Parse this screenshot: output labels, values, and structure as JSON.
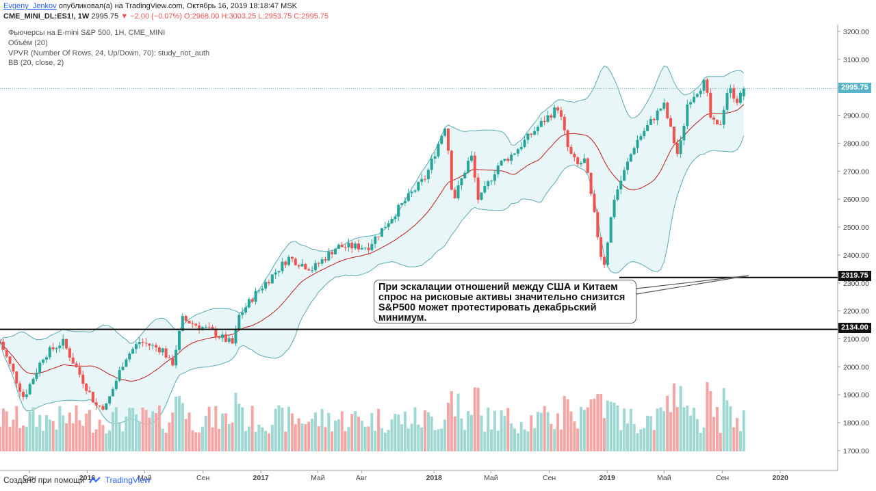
{
  "header": {
    "author": "Evgeny_Jenkov",
    "published_text": "опубликовал(а) на TradingView.com, Октябрь 16, 2019 18:18:47 MSK",
    "symbol": "CME_MINI_DL:ES1!, 1W",
    "last": "2995.75",
    "change": "▼ −2.00 (−0.07%)",
    "ohlc": "O:2968.00 H:3003.25 L:2953.75 C:2995.75"
  },
  "legend": {
    "title": "Фьючерсы на E-mini S&P 500, 1Н, CME_MINI",
    "volume": "Объём (20)",
    "vpvr": "VPVR (Number Of Rows, 24, Up/Down, 70): study_not_auth",
    "bb": "BB (20, close, 2)"
  },
  "price_tags": {
    "current": "2995.75",
    "level1": "2319.75",
    "level2": "2134.00"
  },
  "callout_text": "При эскалации отношений между США и Китаем спрос на рисковые активы значительно снизится S&P500 может протестировать декабрьский минимум.",
  "footer": {
    "made_with": "Создано при помощи",
    "brand": "TradingView"
  },
  "colors": {
    "up": "#26a69a",
    "down": "#ef5350",
    "vol_up": "#9fd8d3",
    "vol_down": "#f5a6a4",
    "bb_band": "#5aa9b4",
    "bb_fill": "#e9f6f7",
    "bb_basis": "#b71c1c",
    "last_line": "#5ab4c8"
  },
  "chart_data": {
    "type": "candlestick",
    "y_axis": {
      "ticks": [
        1700,
        1800,
        1900,
        2000,
        2100,
        2200,
        2300,
        2400,
        2500,
        2600,
        2700,
        2800,
        2900,
        3000,
        3100,
        3200
      ],
      "side": "right"
    },
    "x_axis": {
      "ticks": [
        "Сен",
        "2016",
        "Май",
        "Сен",
        "2017",
        "Май",
        "Авг",
        "2018",
        "Май",
        "Сен",
        "2019",
        "Май",
        "Сен",
        "2020"
      ]
    },
    "horizontal_levels": [
      2319.75,
      2134.0
    ],
    "last_price": 2995.75,
    "anchors": [
      [
        "2015-07-01",
        2090
      ],
      [
        "2015-08-20",
        1890
      ],
      [
        "2015-10-01",
        2040
      ],
      [
        "2015-11-10",
        2090
      ],
      [
        "2016-01-20",
        1860
      ],
      [
        "2016-02-10",
        1860
      ],
      [
        "2016-03-20",
        2030
      ],
      [
        "2016-04-20",
        2090
      ],
      [
        "2016-06-10",
        2060
      ],
      [
        "2016-06-27",
        2000
      ],
      [
        "2016-07-20",
        2170
      ],
      [
        "2016-09-15",
        2130
      ],
      [
        "2016-11-04",
        2080
      ],
      [
        "2016-11-15",
        2180
      ],
      [
        "2016-12-20",
        2260
      ],
      [
        "2017-02-28",
        2390
      ],
      [
        "2017-04-20",
        2350
      ],
      [
        "2017-06-10",
        2430
      ],
      [
        "2017-08-15",
        2430
      ],
      [
        "2017-10-15",
        2560
      ],
      [
        "2017-12-15",
        2680
      ],
      [
        "2018-01-26",
        2872
      ],
      [
        "2018-02-10",
        2590
      ],
      [
        "2018-03-20",
        2760
      ],
      [
        "2018-04-05",
        2590
      ],
      [
        "2018-05-15",
        2720
      ],
      [
        "2018-06-15",
        2760
      ],
      [
        "2018-08-20",
        2880
      ],
      [
        "2018-09-20",
        2930
      ],
      [
        "2018-10-12",
        2770
      ],
      [
        "2018-10-30",
        2720
      ],
      [
        "2018-11-15",
        2740
      ],
      [
        "2018-12-24",
        2350
      ],
      [
        "2019-01-15",
        2600
      ],
      [
        "2019-03-01",
        2800
      ],
      [
        "2019-04-30",
        2940
      ],
      [
        "2019-05-31",
        2750
      ],
      [
        "2019-06-20",
        2950
      ],
      [
        "2019-07-26",
        3020
      ],
      [
        "2019-08-08",
        2880
      ],
      [
        "2019-08-25",
        2850
      ],
      [
        "2019-09-13",
        3000
      ],
      [
        "2019-10-04",
        2950
      ],
      [
        "2019-10-16",
        2995.75
      ]
    ]
  }
}
